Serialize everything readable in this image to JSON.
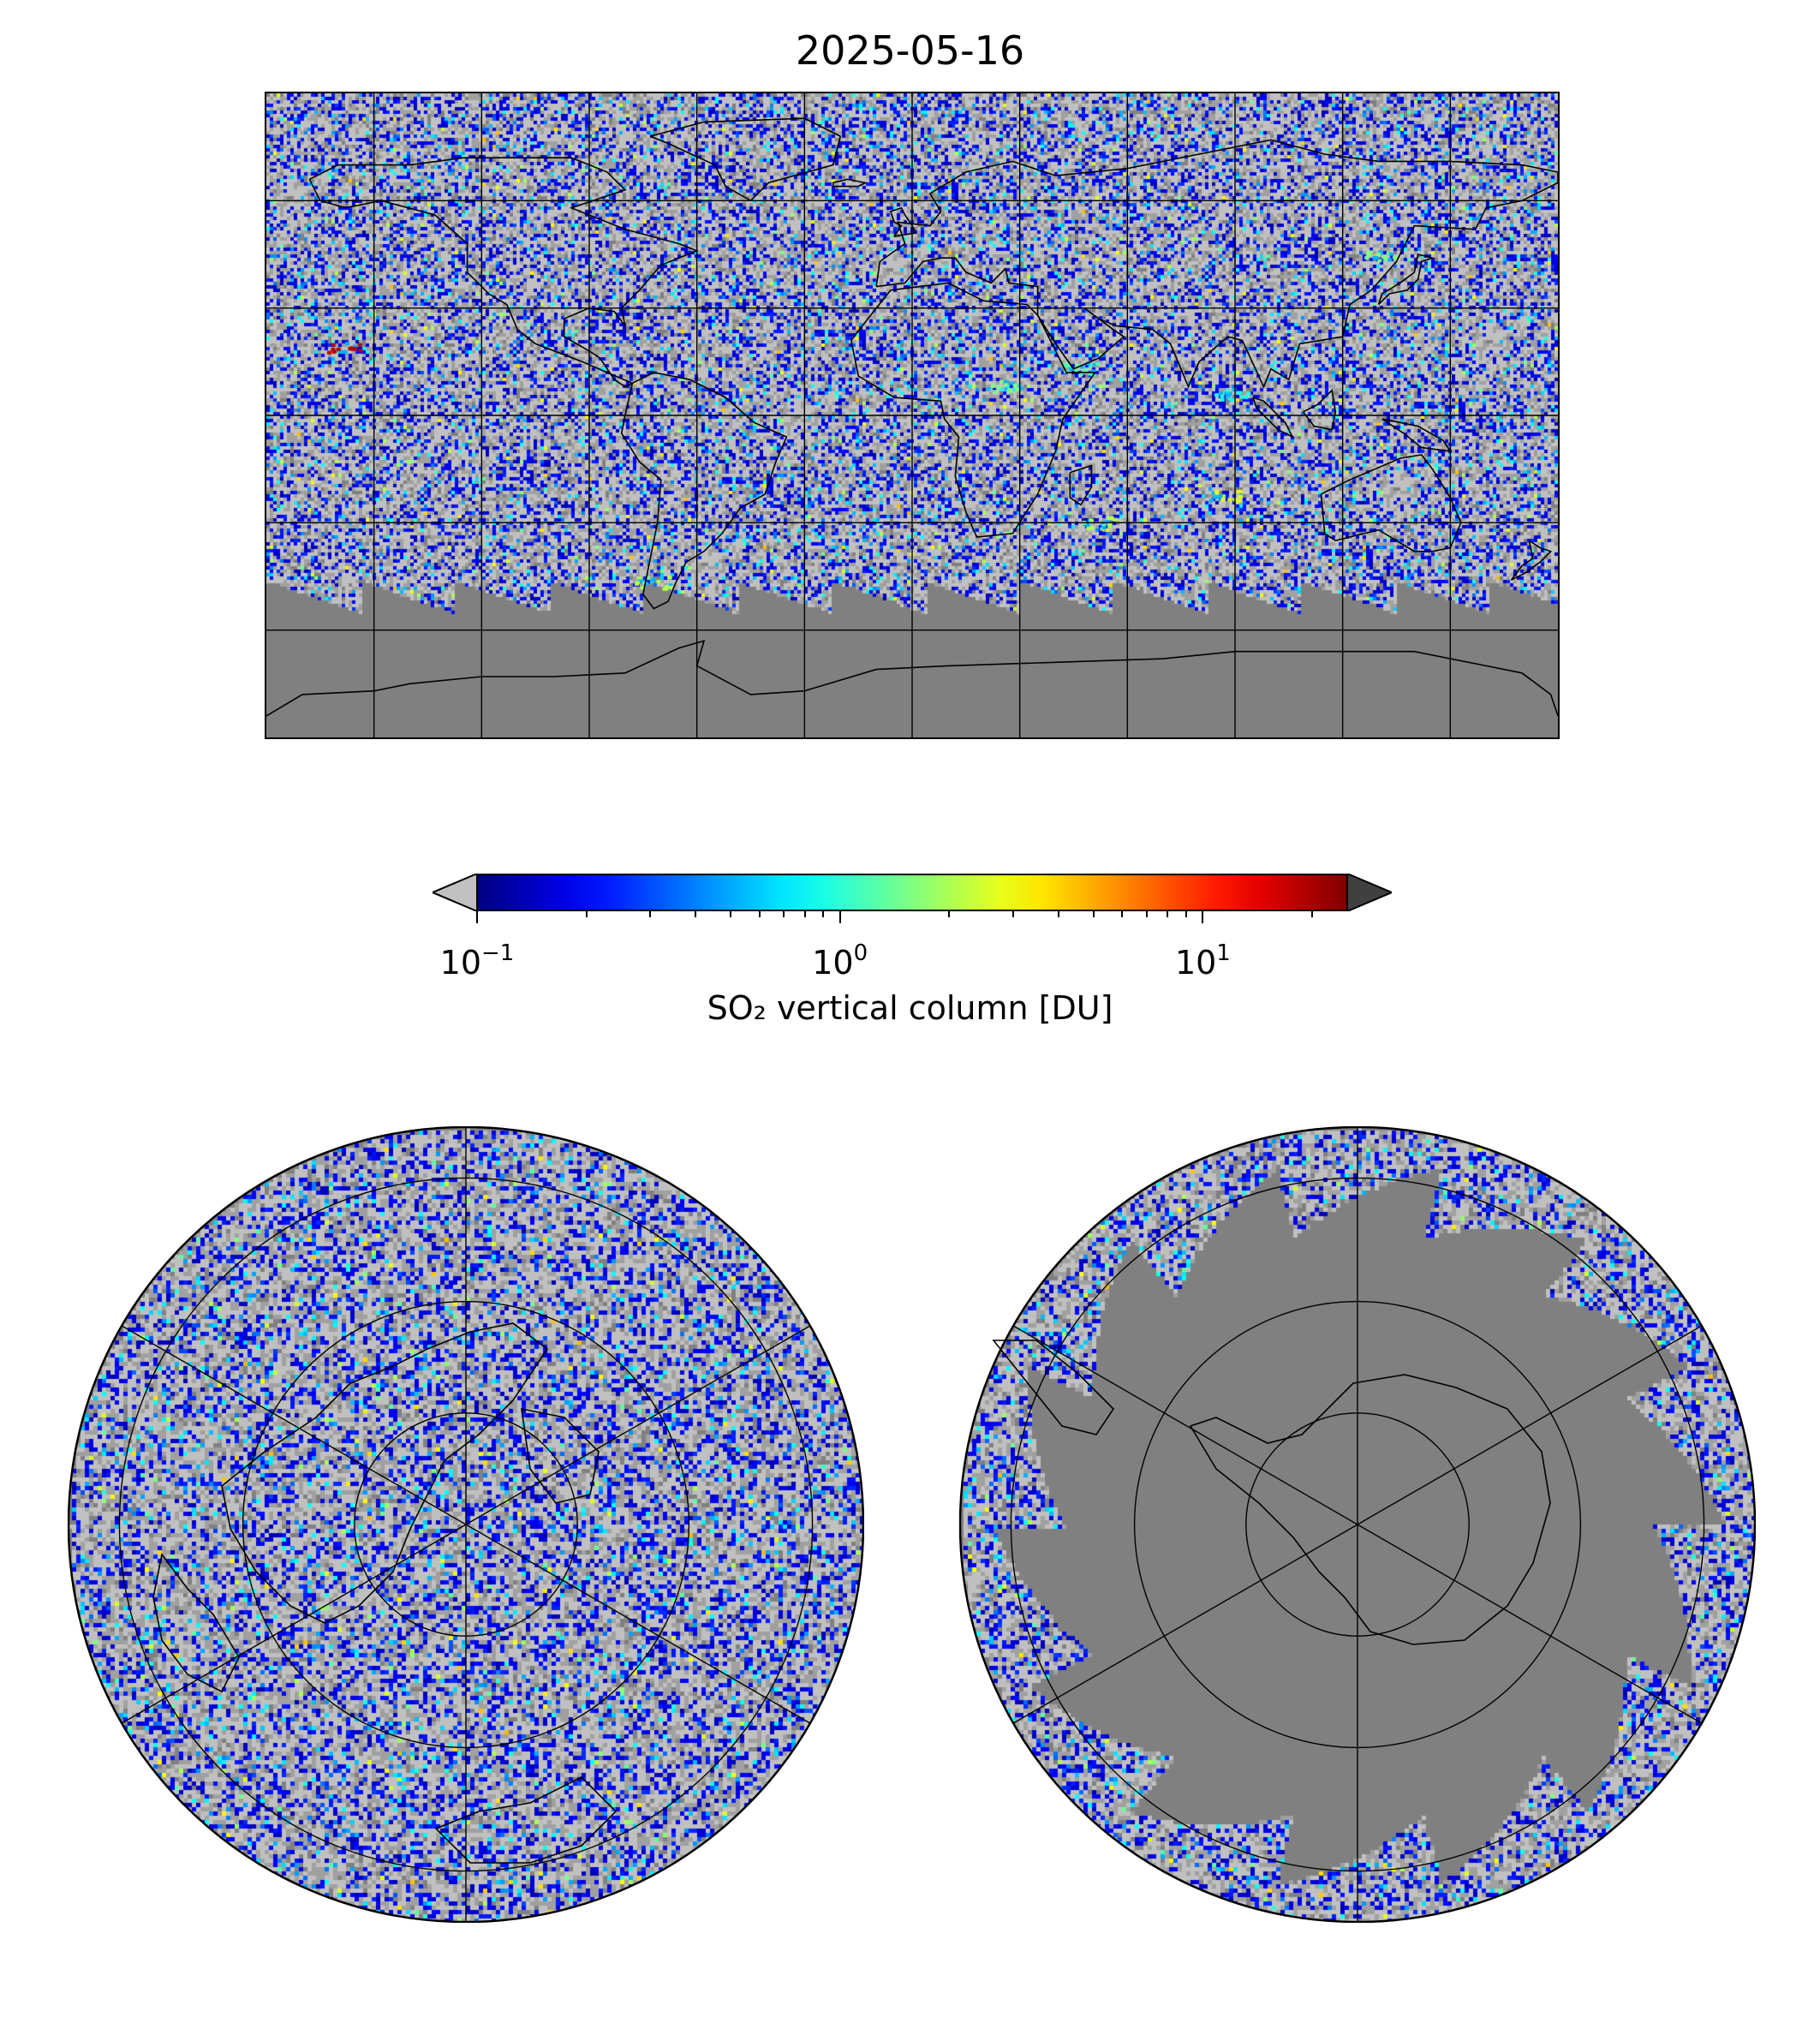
{
  "title": "2025-05-16",
  "colorbar": {
    "label": "SO₂ vertical column [DU]",
    "ticks": [
      {
        "base": "10",
        "exp": "−1",
        "value": 0.1
      },
      {
        "base": "10",
        "exp": "0",
        "value": 1
      },
      {
        "base": "10",
        "exp": "1",
        "value": 10
      }
    ],
    "range": [
      0.1,
      25
    ],
    "scale": "log",
    "colormap": "jet",
    "under_color": "#c0c0c0",
    "over_color": "#404040",
    "extend": "both"
  },
  "colors": {
    "no_data": "#808080",
    "low_values_light": "#c0c0c0",
    "low_values_mid": "#a0a0a0",
    "coastline": "#000000",
    "gridline": "#000000"
  },
  "maps": {
    "world": {
      "projection": "plate-carree",
      "grid": true
    },
    "north_polar": {
      "projection": "north-polar-stereographic",
      "grid": true
    },
    "south_polar": {
      "projection": "south-polar-stereographic",
      "grid": true
    }
  }
}
